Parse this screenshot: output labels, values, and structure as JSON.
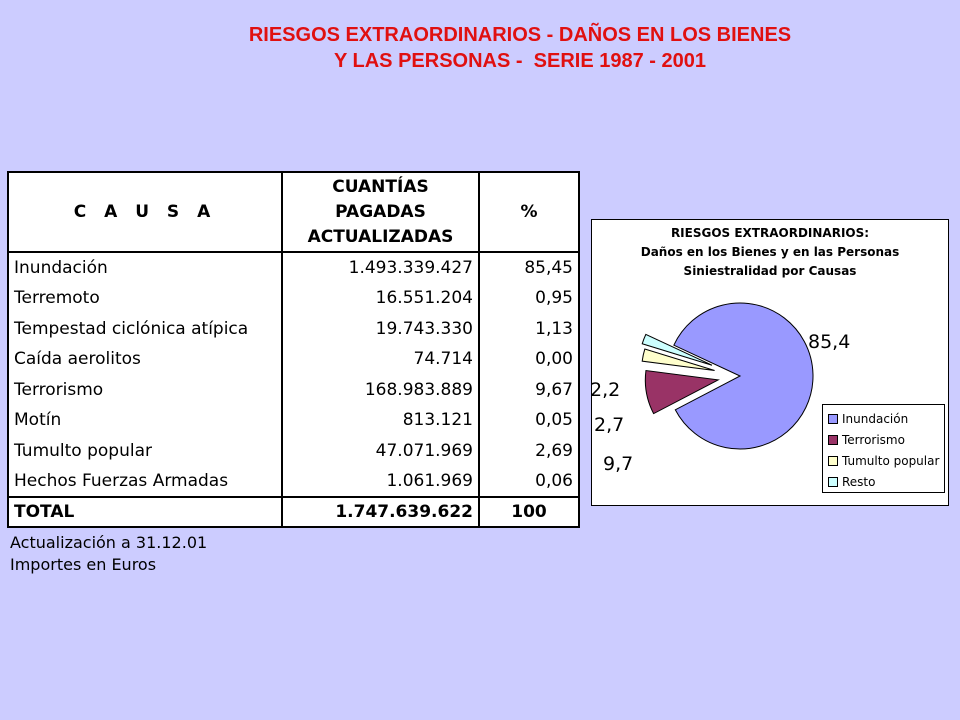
{
  "title": {
    "line1": "RIESGOS EXTRAORDINARIOS - DAÑOS EN LOS BIENES",
    "line2": "Y LAS PERSONAS -  SERIE 1987 - 2001"
  },
  "table": {
    "headers": {
      "causa": "C A U S A",
      "amount_line1": "CUANTÍAS",
      "amount_line2": "PAGADAS",
      "amount_line3": "ACTUALIZADAS",
      "pct": "%"
    },
    "rows": [
      {
        "causa": "Inundación",
        "amount": "1.493.339.427",
        "pct": "85,45"
      },
      {
        "causa": "Terremoto",
        "amount": "16.551.204",
        "pct": "0,95"
      },
      {
        "causa": "Tempestad ciclónica atípica",
        "amount": "19.743.330",
        "pct": "1,13"
      },
      {
        "causa": "Caída aerolitos",
        "amount": "74.714",
        "pct": "0,00"
      },
      {
        "causa": "Terrorismo",
        "amount": "168.983.889",
        "pct": "9,67"
      },
      {
        "causa": "Motín",
        "amount": "813.121",
        "pct": "0,05"
      },
      {
        "causa": "Tumulto popular",
        "amount": "47.071.969",
        "pct": "2,69"
      },
      {
        "causa": "Hechos Fuerzas Armadas",
        "amount": "1.061.969",
        "pct": "0,06"
      }
    ],
    "total": {
      "causa": "TOTAL",
      "amount": "1.747.639.622",
      "pct": "100"
    }
  },
  "notes": {
    "line1": "Actualización a 31.12.01",
    "line2": "Importes en Euros"
  },
  "chart_data": {
    "type": "pie",
    "title": "RIESGOS EXTRAORDINARIOS:",
    "subtitle_line1": "Daños en los Bienes y en las Personas",
    "subtitle_line2": "Siniestralidad por Causas",
    "categories": [
      "Inundación",
      "Terrorismo",
      "Tumulto popular",
      "Resto"
    ],
    "values": [
      85.4,
      9.7,
      2.7,
      2.2
    ],
    "data_labels": [
      "85,4",
      "9,7",
      "2,7",
      "2,2"
    ],
    "colors": [
      "#9999ff",
      "#993366",
      "#ffffcc",
      "#ccffff"
    ],
    "exploded": true,
    "legend_position": "right"
  }
}
